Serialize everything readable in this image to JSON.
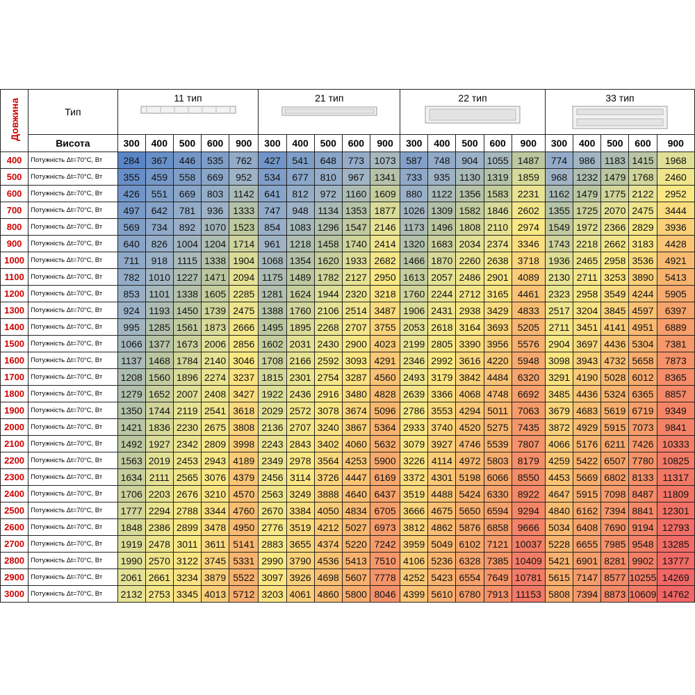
{
  "header": {
    "length_label": "Довжина",
    "type_label": "Тип",
    "height_label": "Висота",
    "groups": [
      {
        "name": "11 тип",
        "heights": [
          300,
          400,
          500,
          600,
          900
        ]
      },
      {
        "name": "21 тип",
        "heights": [
          300,
          400,
          500,
          600,
          900
        ]
      },
      {
        "name": "22 тип",
        "heights": [
          300,
          400,
          500,
          600,
          900
        ]
      },
      {
        "name": "33 тип",
        "heights": [
          300,
          400,
          500,
          600,
          900
        ]
      }
    ]
  },
  "table": {
    "rows": [
      {
        "length": 400,
        "label": "Потужність Δt=70°С, Вт",
        "values": [
          284,
          367,
          446,
          535,
          762,
          427,
          541,
          648,
          773,
          1073,
          587,
          748,
          904,
          1055,
          1487,
          774,
          986,
          1183,
          1415,
          1968
        ]
      },
      {
        "length": 500,
        "label": "Потужність Δt=70°С, Вт",
        "values": [
          355,
          459,
          558,
          669,
          952,
          534,
          677,
          810,
          967,
          1341,
          733,
          935,
          1130,
          1319,
          1859,
          968,
          1232,
          1479,
          1768,
          2460
        ]
      },
      {
        "length": 600,
        "label": "Потужність Δt=70°С, Вт",
        "values": [
          426,
          551,
          669,
          803,
          1142,
          641,
          812,
          972,
          1160,
          1609,
          880,
          1122,
          1356,
          1583,
          2231,
          1162,
          1479,
          1775,
          2122,
          2952
        ]
      },
      {
        "length": 700,
        "label": "Потужність Δt=70°С, Вт",
        "values": [
          497,
          642,
          781,
          936,
          1333,
          747,
          948,
          1134,
          1353,
          1877,
          1026,
          1309,
          1582,
          1846,
          2602,
          1355,
          1725,
          2070,
          2475,
          3444
        ]
      },
      {
        "length": 800,
        "label": "Потужність Δt=70°С, Вт",
        "values": [
          569,
          734,
          892,
          1070,
          1523,
          854,
          1083,
          1296,
          1547,
          2146,
          1173,
          1496,
          1808,
          2110,
          2974,
          1549,
          1972,
          2366,
          2829,
          3936
        ]
      },
      {
        "length": 900,
        "label": "Потужність Δt=70°С, Вт",
        "values": [
          640,
          826,
          1004,
          1204,
          1714,
          961,
          1218,
          1458,
          1740,
          2414,
          1320,
          1683,
          2034,
          2374,
          3346,
          1743,
          2218,
          2662,
          3183,
          4428
        ]
      },
      {
        "length": 1000,
        "label": "Потужність Δt=70°С, Вт",
        "values": [
          711,
          918,
          1115,
          1338,
          1904,
          1068,
          1354,
          1620,
          1933,
          2682,
          1466,
          1870,
          2260,
          2638,
          3718,
          1936,
          2465,
          2958,
          3536,
          4921
        ]
      },
      {
        "length": 1100,
        "label": "Потужність Δt=70°С, Вт",
        "values": [
          782,
          1010,
          1227,
          1471,
          2094,
          1175,
          1489,
          1782,
          2127,
          2950,
          1613,
          2057,
          2486,
          2901,
          4089,
          2130,
          2711,
          3253,
          3890,
          5413
        ]
      },
      {
        "length": 1200,
        "label": "Потужність Δt=70°С, Вт",
        "values": [
          853,
          1101,
          1338,
          1605,
          2285,
          1281,
          1624,
          1944,
          2320,
          3218,
          1760,
          2244,
          2712,
          3165,
          4461,
          2323,
          2958,
          3549,
          4244,
          5905
        ]
      },
      {
        "length": 1300,
        "label": "Потужність Δt=70°С, Вт",
        "values": [
          924,
          1193,
          1450,
          1739,
          2475,
          1388,
          1760,
          2106,
          2514,
          3487,
          1906,
          2431,
          2938,
          3429,
          4833,
          2517,
          3204,
          3845,
          4597,
          6397
        ]
      },
      {
        "length": 1400,
        "label": "Потужність Δt=70°С, Вт",
        "values": [
          995,
          1285,
          1561,
          1873,
          2666,
          1495,
          1895,
          2268,
          2707,
          3755,
          2053,
          2618,
          3164,
          3693,
          5205,
          2711,
          3451,
          4141,
          4951,
          6889
        ]
      },
      {
        "length": 1500,
        "label": "Потужність Δt=70°С, Вт",
        "values": [
          1066,
          1377,
          1673,
          2006,
          2856,
          1602,
          2031,
          2430,
          2900,
          4023,
          2199,
          2805,
          3390,
          3956,
          5576,
          2904,
          3697,
          4436,
          5304,
          7381
        ]
      },
      {
        "length": 1600,
        "label": "Потужність Δt=70°С, Вт",
        "values": [
          1137,
          1468,
          1784,
          2140,
          3046,
          1708,
          2166,
          2592,
          3093,
          4291,
          2346,
          2992,
          3616,
          4220,
          5948,
          3098,
          3943,
          4732,
          5658,
          7873
        ]
      },
      {
        "length": 1700,
        "label": "Потужність Δt=70°С, Вт",
        "values": [
          1208,
          1560,
          1896,
          2274,
          3237,
          1815,
          2301,
          2754,
          3287,
          4560,
          2493,
          3179,
          3842,
          4484,
          6320,
          3291,
          4190,
          5028,
          6012,
          8365
        ]
      },
      {
        "length": 1800,
        "label": "Потужність Δt=70°С, Вт",
        "values": [
          1279,
          1652,
          2007,
          2408,
          3427,
          1922,
          2436,
          2916,
          3480,
          4828,
          2639,
          3366,
          4068,
          4748,
          6692,
          3485,
          4436,
          5324,
          6365,
          8857
        ]
      },
      {
        "length": 1900,
        "label": "Потужність Δt=70°С, Вт",
        "values": [
          1350,
          1744,
          2119,
          2541,
          3618,
          2029,
          2572,
          3078,
          3674,
          5096,
          2786,
          3553,
          4294,
          5011,
          7063,
          3679,
          4683,
          5619,
          6719,
          9349
        ]
      },
      {
        "length": 2000,
        "label": "Потужність Δt=70°С, Вт",
        "values": [
          1421,
          1836,
          2230,
          2675,
          3808,
          2136,
          2707,
          3240,
          3867,
          5364,
          2933,
          3740,
          4520,
          5275,
          7435,
          3872,
          4929,
          5915,
          7073,
          9841
        ]
      },
      {
        "length": 2100,
        "label": "Потужність Δt=70°С, Вт",
        "values": [
          1492,
          1927,
          2342,
          2809,
          3998,
          2243,
          2843,
          3402,
          4060,
          5632,
          3079,
          3927,
          4746,
          5539,
          7807,
          4066,
          5176,
          6211,
          7426,
          10333
        ]
      },
      {
        "length": 2200,
        "label": "Потужність Δt=70°С, Вт",
        "values": [
          1563,
          2019,
          2453,
          2943,
          4189,
          2349,
          2978,
          3564,
          4253,
          5900,
          3226,
          4114,
          4972,
          5803,
          8179,
          4259,
          5422,
          6507,
          7780,
          10825
        ]
      },
      {
        "length": 2300,
        "label": "Потужність Δt=70°С, Вт",
        "values": [
          1634,
          2111,
          2565,
          3076,
          4379,
          2456,
          3114,
          3726,
          4447,
          6169,
          3372,
          4301,
          5198,
          6066,
          8550,
          4453,
          5669,
          6802,
          8133,
          11317
        ]
      },
      {
        "length": 2400,
        "label": "Потужність Δt=70°С, Вт",
        "values": [
          1706,
          2203,
          2676,
          3210,
          4570,
          2563,
          3249,
          3888,
          4640,
          6437,
          3519,
          4488,
          5424,
          6330,
          8922,
          4647,
          5915,
          7098,
          8487,
          11809
        ]
      },
      {
        "length": 2500,
        "label": "Потужність Δt=70°С, Вт",
        "values": [
          1777,
          2294,
          2788,
          3344,
          4760,
          2670,
          3384,
          4050,
          4834,
          6705,
          3666,
          4675,
          5650,
          6594,
          9294,
          4840,
          6162,
          7394,
          8841,
          12301
        ]
      },
      {
        "length": 2600,
        "label": "Потужність Δt=70°С, Вт",
        "values": [
          1848,
          2386,
          2899,
          3478,
          4950,
          2776,
          3519,
          4212,
          5027,
          6973,
          3812,
          4862,
          5876,
          6858,
          9666,
          5034,
          6408,
          7690,
          9194,
          12793
        ]
      },
      {
        "length": 2700,
        "label": "Потужність Δt=70°С, Вт",
        "values": [
          1919,
          2478,
          3011,
          3611,
          5141,
          2883,
          3655,
          4374,
          5220,
          7242,
          3959,
          5049,
          6102,
          7121,
          10037,
          5228,
          6655,
          7985,
          9548,
          13285
        ]
      },
      {
        "length": 2800,
        "label": "Потужність Δt=70°С, Вт",
        "values": [
          1990,
          2570,
          3122,
          3745,
          5331,
          2990,
          3790,
          4536,
          5413,
          7510,
          4106,
          5236,
          6328,
          7385,
          10409,
          5421,
          6901,
          8281,
          9902,
          13777
        ]
      },
      {
        "length": 2900,
        "label": "Потужність Δt=70°С, Вт",
        "values": [
          2061,
          2661,
          3234,
          3879,
          5522,
          3097,
          3926,
          4698,
          5607,
          7778,
          4252,
          5423,
          6554,
          7649,
          10781,
          5615,
          7147,
          8577,
          10255,
          14269
        ]
      },
      {
        "length": 3000,
        "label": "Потужність Δt=70°С, Вт",
        "values": [
          2132,
          2753,
          3345,
          4013,
          5712,
          3203,
          4061,
          4860,
          5800,
          8046,
          4399,
          5610,
          6780,
          7913,
          11153,
          5808,
          7394,
          8873,
          10609,
          14762
        ]
      }
    ]
  }
}
